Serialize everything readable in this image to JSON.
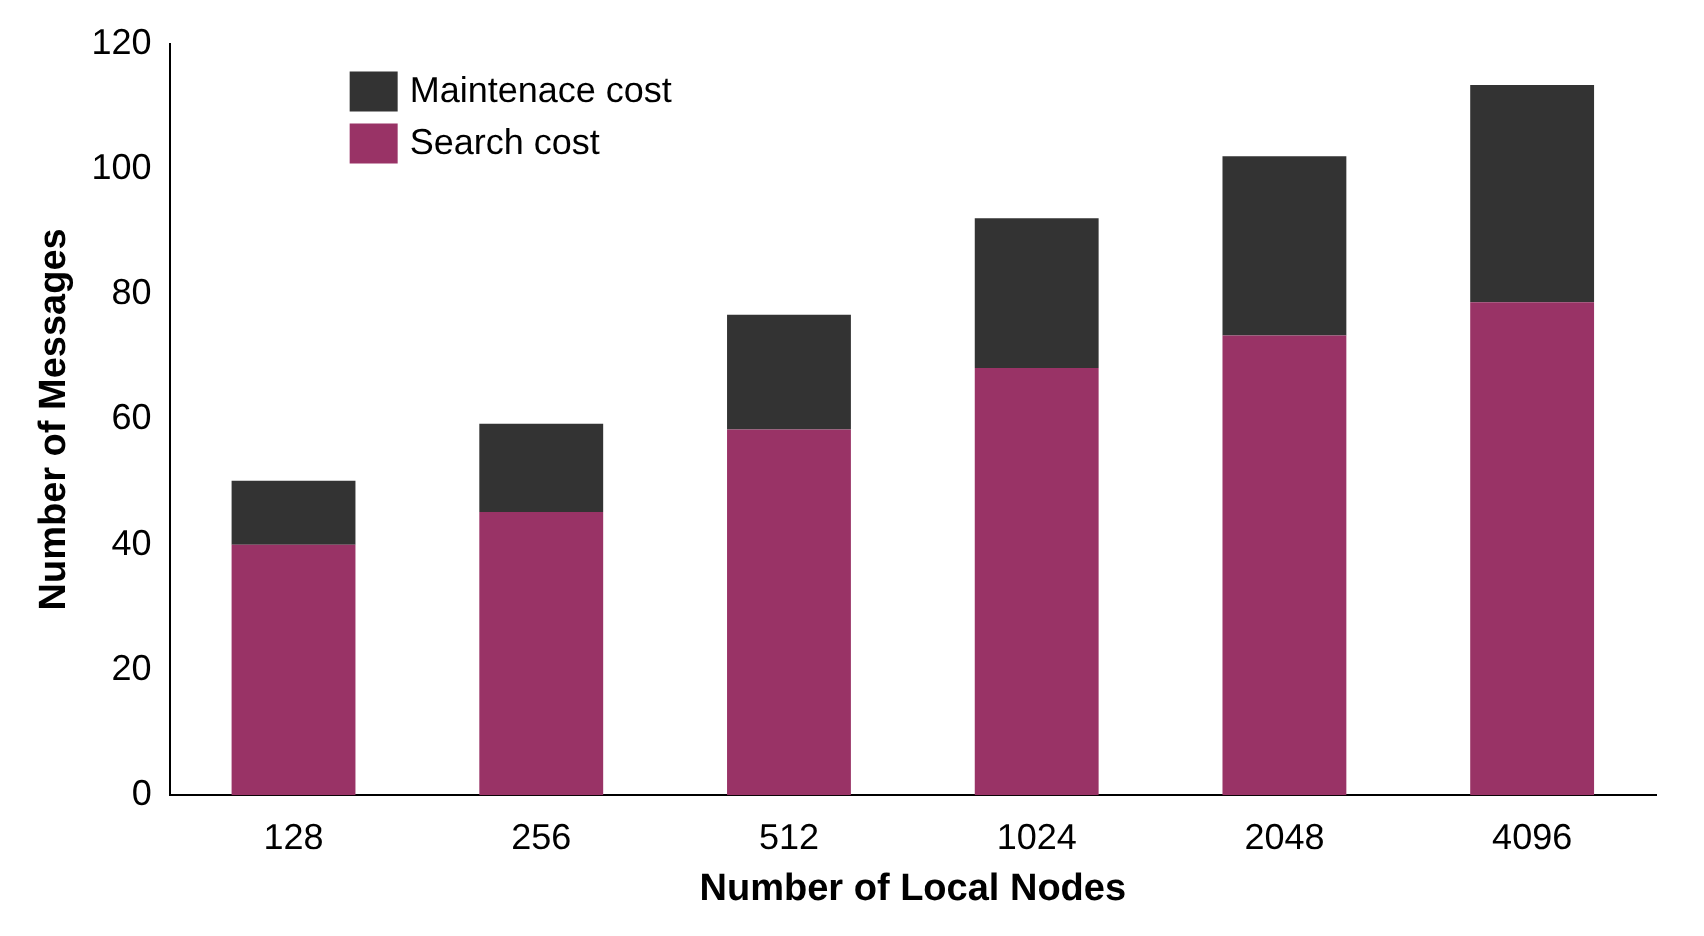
{
  "chart_data": {
    "type": "bar",
    "xlabel": "Number of Local Nodes",
    "ylabel": "Number of Messages",
    "categories": [
      "128",
      "256",
      "512",
      "1024",
      "2048",
      "4096"
    ],
    "stacked": true,
    "ylim": [
      0,
      120
    ],
    "yticks": [
      0,
      20,
      40,
      60,
      80,
      100,
      120
    ],
    "grid": false,
    "legend": "top left",
    "series": [
      {
        "name": "Search cost",
        "color": "#993366",
        "values": [
          40,
          45.2,
          58.4,
          68.2,
          73.4,
          78.7
        ]
      },
      {
        "name": "Maintenace cost",
        "color": "#333333",
        "values": [
          10.2,
          14.1,
          18.3,
          23.9,
          28.6,
          34.7
        ]
      }
    ]
  }
}
